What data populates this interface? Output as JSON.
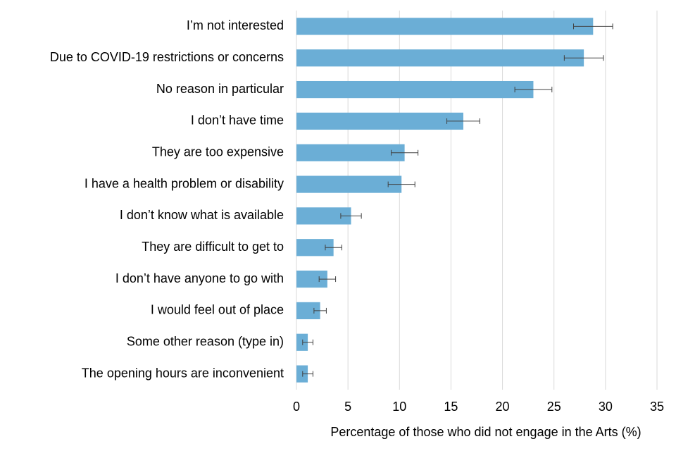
{
  "chart_data": {
    "type": "bar",
    "orientation": "horizontal",
    "x_label": "Percentage of those who did not engage in the Arts (%)",
    "categories": [
      "I’m not interested",
      "Due to COVID-19 restrictions or concerns",
      "No reason in particular",
      "I don’t have time",
      "They are too expensive",
      "I have a health problem or disability",
      "I don’t know what is available",
      "They are difficult to get to",
      "I don’t have anyone to go with",
      "I would feel out of place",
      "Some other reason (type in)",
      "The opening hours are inconvenient"
    ],
    "values": [
      28.8,
      27.9,
      23.0,
      16.2,
      10.5,
      10.2,
      5.3,
      3.6,
      3.0,
      2.3,
      1.1,
      1.1
    ],
    "errors": [
      1.9,
      1.9,
      1.8,
      1.6,
      1.3,
      1.3,
      1.0,
      0.8,
      0.8,
      0.6,
      0.5,
      0.5
    ],
    "color": "#6baed6",
    "xlim": [
      0,
      35
    ],
    "xticks": [
      0,
      5,
      10,
      15,
      20,
      25,
      30,
      35
    ],
    "grid": true
  }
}
